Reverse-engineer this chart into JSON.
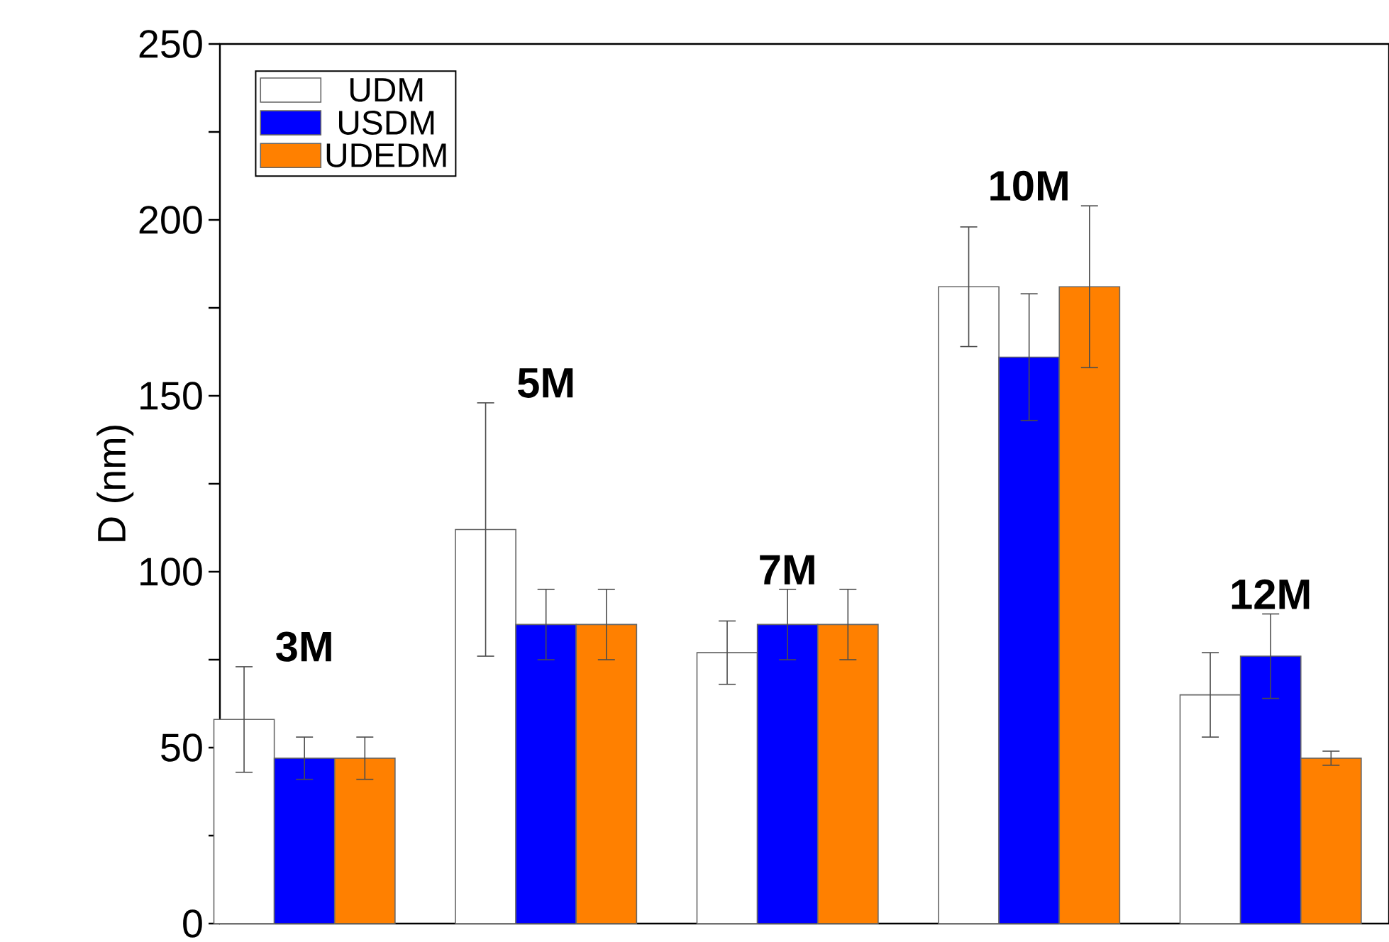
{
  "chart_data": {
    "type": "bar",
    "ylabel": "D (nm)",
    "categories": [
      "3M",
      "5M",
      "7M",
      "10M",
      "12M"
    ],
    "series": [
      {
        "name": "UDM",
        "color": "#ffffff",
        "values": [
          58,
          112,
          77,
          181,
          65
        ],
        "errors": [
          15,
          36,
          9,
          17,
          12
        ]
      },
      {
        "name": "USDM",
        "color": "#0000ff",
        "values": [
          47,
          85,
          85,
          161,
          76
        ],
        "errors": [
          6,
          10,
          10,
          18,
          12
        ]
      },
      {
        "name": "UDEDM",
        "color": "#ff8000",
        "values": [
          47,
          85,
          85,
          181,
          47
        ],
        "errors": [
          6,
          10,
          10,
          23,
          2
        ]
      }
    ],
    "ylim": [
      0,
      250
    ],
    "yticks": [
      0,
      50,
      100,
      150,
      200,
      250
    ],
    "legend": "top left",
    "tick_labels": "y"
  }
}
